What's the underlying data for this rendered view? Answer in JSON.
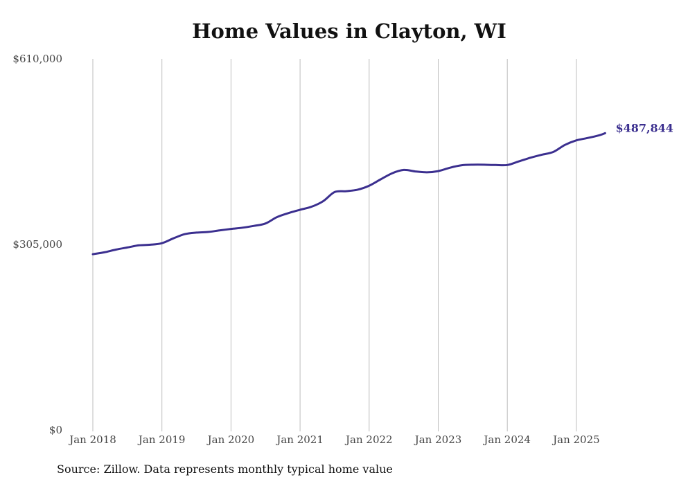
{
  "chart_data": {
    "type": "line",
    "title": "Home Values in Clayton, WI",
    "source": "Source: Zillow. Data represents monthly typical home value",
    "ylim": [
      0,
      610000
    ],
    "y_ticks": [
      {
        "value": 0,
        "label": "$0"
      },
      {
        "value": 305000,
        "label": "$305,000"
      },
      {
        "value": 610000,
        "label": "$610,000"
      }
    ],
    "x_ticks": [
      "Jan 2018",
      "Jan 2019",
      "Jan 2020",
      "Jan 2021",
      "Jan 2022",
      "Jan 2023",
      "Jan 2024",
      "Jan 2025"
    ],
    "grid": "vertical",
    "series": [
      {
        "color": "#3b2f8f",
        "end_label": "$487,844",
        "points": [
          [
            "2018-01",
            289000
          ],
          [
            "2018-03",
            292000
          ],
          [
            "2018-05",
            296500
          ],
          [
            "2018-07",
            300000
          ],
          [
            "2018-09",
            303500
          ],
          [
            "2018-11",
            304500
          ],
          [
            "2019-01",
            307000
          ],
          [
            "2019-03",
            315000
          ],
          [
            "2019-05",
            322000
          ],
          [
            "2019-07",
            324500
          ],
          [
            "2019-09",
            325500
          ],
          [
            "2019-11",
            328000
          ],
          [
            "2020-01",
            330500
          ],
          [
            "2020-03",
            332500
          ],
          [
            "2020-05",
            335500
          ],
          [
            "2020-07",
            339500
          ],
          [
            "2020-09",
            350000
          ],
          [
            "2020-11",
            356500
          ],
          [
            "2021-01",
            362000
          ],
          [
            "2021-03",
            367000
          ],
          [
            "2021-05",
            376000
          ],
          [
            "2021-07",
            391000
          ],
          [
            "2021-09",
            392500
          ],
          [
            "2021-11",
            395000
          ],
          [
            "2022-01",
            401500
          ],
          [
            "2022-03",
            412000
          ],
          [
            "2022-05",
            422000
          ],
          [
            "2022-07",
            427500
          ],
          [
            "2022-09",
            425000
          ],
          [
            "2022-11",
            423500
          ],
          [
            "2023-01",
            425500
          ],
          [
            "2023-03",
            431000
          ],
          [
            "2023-05",
            435000
          ],
          [
            "2023-07",
            436000
          ],
          [
            "2023-09",
            436000
          ],
          [
            "2023-11",
            435500
          ],
          [
            "2024-01",
            435500
          ],
          [
            "2024-03",
            441500
          ],
          [
            "2024-05",
            447500
          ],
          [
            "2024-07",
            452500
          ],
          [
            "2024-09",
            457000
          ],
          [
            "2024-11",
            468500
          ],
          [
            "2025-01",
            476000
          ],
          [
            "2025-03",
            480000
          ],
          [
            "2025-05",
            484500
          ],
          [
            "2025-06",
            487844
          ]
        ]
      }
    ]
  }
}
